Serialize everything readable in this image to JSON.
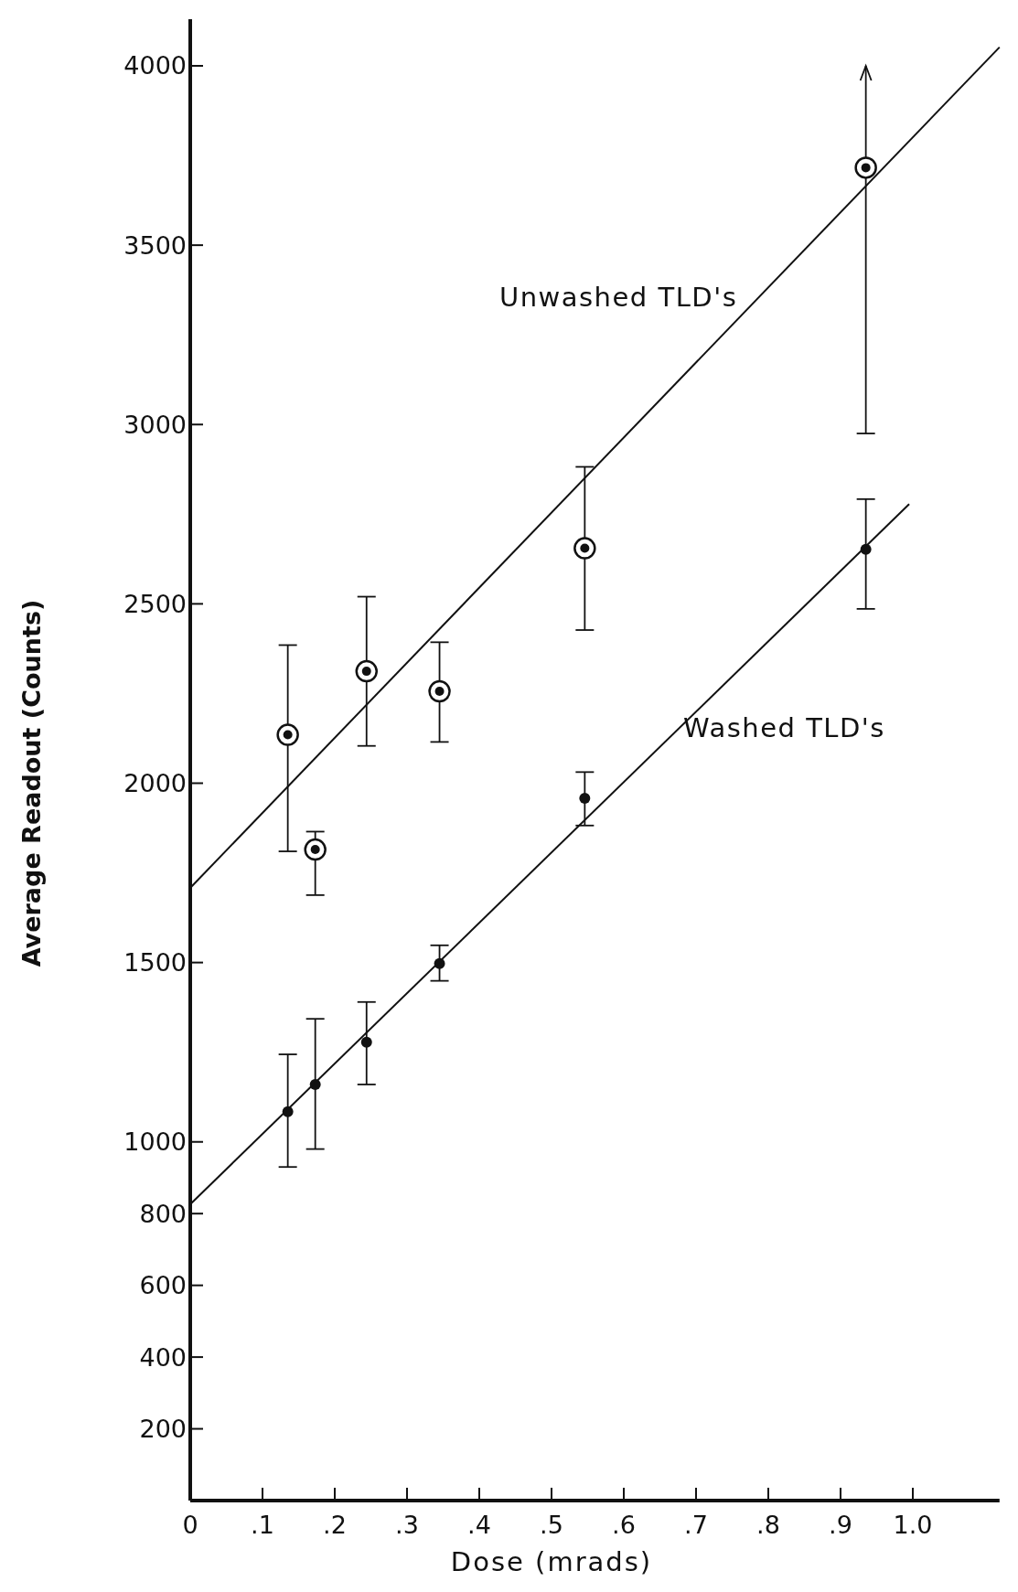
{
  "chart_data": {
    "type": "scatter",
    "xlabel": "Dose (mrads)",
    "ylabel": "Average Readout (Counts)",
    "xlim": [
      0,
      1.12
    ],
    "ylim": [
      0,
      4130
    ],
    "xticks": [
      {
        "value": 0,
        "label": "0"
      },
      {
        "value": 0.1,
        "label": ".1"
      },
      {
        "value": 0.2,
        "label": ".2"
      },
      {
        "value": 0.3,
        "label": ".3"
      },
      {
        "value": 0.4,
        "label": ".4"
      },
      {
        "value": 0.5,
        "label": ".5"
      },
      {
        "value": 0.6,
        "label": ".6"
      },
      {
        "value": 0.7,
        "label": ".7"
      },
      {
        "value": 0.8,
        "label": ".8"
      },
      {
        "value": 0.9,
        "label": ".9"
      },
      {
        "value": 1.0,
        "label": "1.0"
      }
    ],
    "yticks": [
      200,
      400,
      600,
      800,
      1000,
      1500,
      2000,
      2500,
      3000,
      3500,
      4000
    ],
    "grid": false,
    "marker": "circle",
    "series": [
      {
        "color": "#111111",
        "x": [
          0.135,
          0.173,
          0.244,
          0.345,
          0.546,
          0.935
        ],
        "values": [
          2135,
          1815,
          2312,
          2256,
          2655,
          3716
        ],
        "errors": [
          [
            1810,
            2385
          ],
          [
            1688,
            1865
          ],
          [
            2104,
            2520
          ],
          [
            2115,
            2393
          ],
          [
            2427,
            2882
          ],
          [
            2975,
            4000
          ]
        ]
      },
      {
        "color": "#111111",
        "x": [
          0.135,
          0.173,
          0.244,
          0.345,
          0.546,
          0.935
        ],
        "values": [
          1084,
          1160,
          1278,
          1497,
          1958,
          2652
        ],
        "errors": [
          [
            930,
            1244
          ],
          [
            980,
            1343
          ],
          [
            1160,
            1390
          ],
          [
            1449,
            1548
          ],
          [
            1882,
            2031
          ],
          [
            2486,
            2792
          ]
        ]
      },
      {
        "name": "Unwashed TLD's",
        "type": "line",
        "color": "#111111",
        "x": [
          0,
          1.12
        ],
        "values": [
          1708,
          4052
        ],
        "marker": "none"
      },
      {
        "name": "Washed TLD's",
        "type": "line",
        "color": "#111111",
        "x": [
          0,
          0.995
        ],
        "values": [
          826,
          2778
        ],
        "marker": "none"
      }
    ]
  }
}
